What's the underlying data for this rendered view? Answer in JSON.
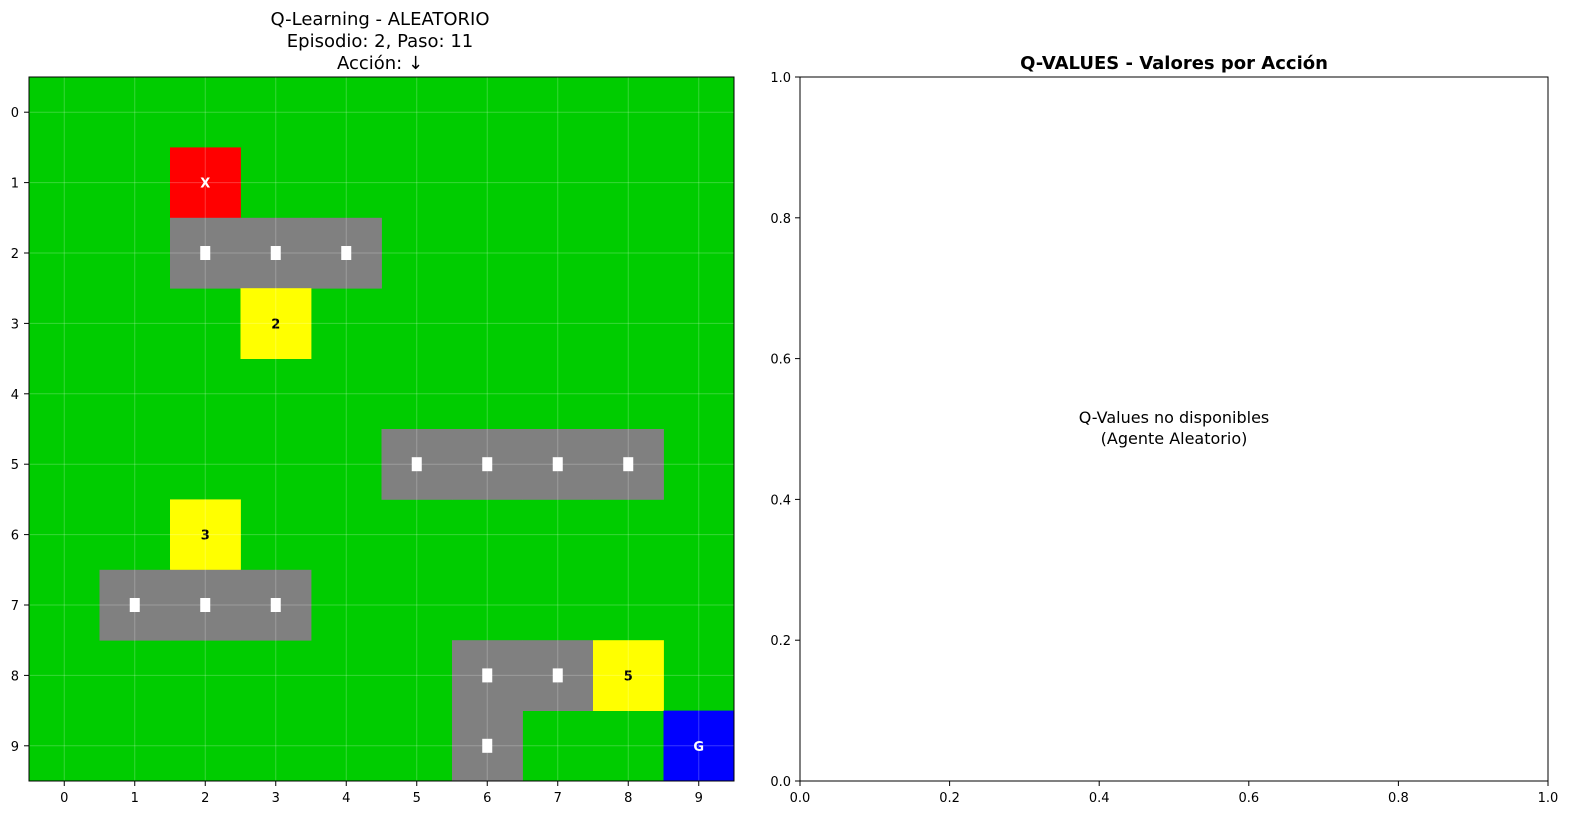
{
  "left_panel": {
    "title_line1": "Q-Learning - ALEATORIO",
    "title_line2": "Episodio: 2, Paso: 11",
    "title_line3": "Acción: ↓"
  },
  "right_panel": {
    "title": "Q-VALUES - Valores por Acción",
    "message_line1": "Q-Values no disponibles",
    "message_line2": "(Agente Aleatorio)"
  },
  "colors": {
    "grass": "#00cc00",
    "obstacle": "#808080",
    "bonus": "#ffff00",
    "agent": "#ff0000",
    "goal": "#0000ff",
    "axis": "#000000",
    "obstacle_marker": "#ffffff"
  },
  "chart_data": [
    {
      "type": "heatmap",
      "title": "Q-Learning - ALEATORIO\nEpisodio: 2, Paso: 11\nAcción: ↓",
      "xlim": [
        -0.5,
        9.5
      ],
      "ylim": [
        9.5,
        -0.5
      ],
      "xticks": [
        0,
        1,
        2,
        3,
        4,
        5,
        6,
        7,
        8,
        9
      ],
      "yticks": [
        0,
        1,
        2,
        3,
        4,
        5,
        6,
        7,
        8,
        9
      ],
      "grid": true,
      "cells": [
        {
          "row": 1,
          "col": 2,
          "kind": "agent",
          "label": "X"
        },
        {
          "row": 2,
          "col": 2,
          "kind": "obstacle",
          "label": ""
        },
        {
          "row": 2,
          "col": 3,
          "kind": "obstacle",
          "label": ""
        },
        {
          "row": 2,
          "col": 4,
          "kind": "obstacle",
          "label": ""
        },
        {
          "row": 3,
          "col": 3,
          "kind": "bonus",
          "label": "2"
        },
        {
          "row": 5,
          "col": 5,
          "kind": "obstacle",
          "label": ""
        },
        {
          "row": 5,
          "col": 6,
          "kind": "obstacle",
          "label": ""
        },
        {
          "row": 5,
          "col": 7,
          "kind": "obstacle",
          "label": ""
        },
        {
          "row": 5,
          "col": 8,
          "kind": "obstacle",
          "label": ""
        },
        {
          "row": 6,
          "col": 2,
          "kind": "bonus",
          "label": "3"
        },
        {
          "row": 7,
          "col": 1,
          "kind": "obstacle",
          "label": ""
        },
        {
          "row": 7,
          "col": 2,
          "kind": "obstacle",
          "label": ""
        },
        {
          "row": 7,
          "col": 3,
          "kind": "obstacle",
          "label": ""
        },
        {
          "row": 8,
          "col": 6,
          "kind": "obstacle",
          "label": ""
        },
        {
          "row": 8,
          "col": 7,
          "kind": "obstacle",
          "label": ""
        },
        {
          "row": 8,
          "col": 8,
          "kind": "bonus",
          "label": "5"
        },
        {
          "row": 9,
          "col": 6,
          "kind": "obstacle",
          "label": ""
        },
        {
          "row": 9,
          "col": 9,
          "kind": "goal",
          "label": "G"
        }
      ]
    },
    {
      "type": "bar",
      "title": "Q-VALUES - Valores por Acción",
      "xlim": [
        0,
        1
      ],
      "ylim": [
        0,
        1
      ],
      "xticks": [
        "0.0",
        "0.2",
        "0.4",
        "0.6",
        "0.8",
        "1.0"
      ],
      "yticks": [
        "0.0",
        "0.2",
        "0.4",
        "0.6",
        "0.8",
        "1.0"
      ],
      "categories": [],
      "values": []
    }
  ]
}
